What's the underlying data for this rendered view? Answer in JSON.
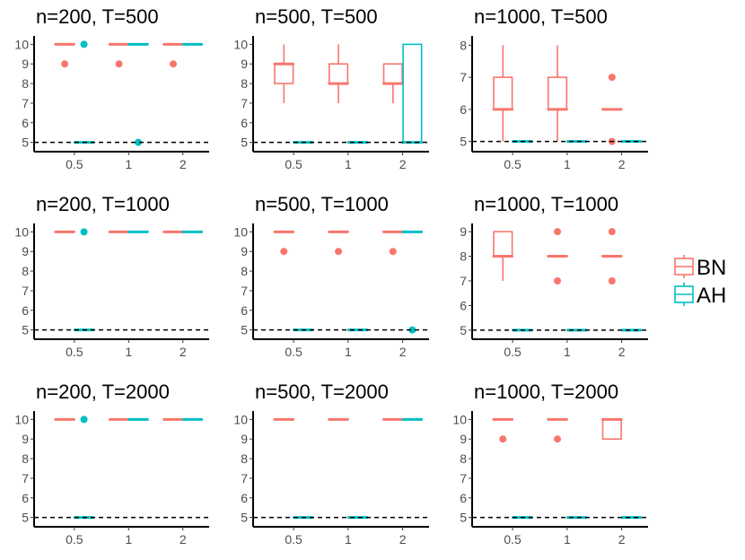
{
  "chart_data": {
    "type": "boxplot-grid",
    "colors": {
      "BN": "#F8766D",
      "AH": "#00BFC4"
    },
    "legend": {
      "position": "right",
      "entries": [
        "BN",
        "AH"
      ]
    },
    "reference_line": {
      "y": 5,
      "style": "dashed"
    },
    "x_categories": [
      "0.5",
      "1",
      "2"
    ],
    "panels": [
      {
        "title": "n=200, T=500",
        "ylim": [
          4.8,
          10.2
        ],
        "yticks": [
          5,
          6,
          7,
          8,
          9,
          10
        ],
        "groups": [
          {
            "x": "0.5",
            "series": "BN",
            "q1": 10,
            "median": 10,
            "q3": 10,
            "whisker_low": 10,
            "whisker_high": 10,
            "outliers": [
              9
            ]
          },
          {
            "x": "0.5",
            "series": "AH",
            "q1": 5,
            "median": 5,
            "q3": 5,
            "whisker_low": 5,
            "whisker_high": 5,
            "outliers": [
              10
            ]
          },
          {
            "x": "1",
            "series": "BN",
            "q1": 10,
            "median": 10,
            "q3": 10,
            "whisker_low": 10,
            "whisker_high": 10,
            "outliers": [
              9
            ]
          },
          {
            "x": "1",
            "series": "AH",
            "q1": 10,
            "median": 10,
            "q3": 10,
            "whisker_low": 10,
            "whisker_high": 10,
            "outliers": [
              5
            ]
          },
          {
            "x": "2",
            "series": "BN",
            "q1": 10,
            "median": 10,
            "q3": 10,
            "whisker_low": 10,
            "whisker_high": 10,
            "outliers": [
              9
            ]
          },
          {
            "x": "2",
            "series": "AH",
            "q1": 10,
            "median": 10,
            "q3": 10,
            "whisker_low": 10,
            "whisker_high": 10,
            "outliers": []
          }
        ]
      },
      {
        "title": "n=500, T=500",
        "ylim": [
          4.8,
          10.2
        ],
        "yticks": [
          5,
          6,
          7,
          8,
          9,
          10
        ],
        "groups": [
          {
            "x": "0.5",
            "series": "BN",
            "q1": 8,
            "median": 9,
            "q3": 9,
            "whisker_low": 7,
            "whisker_high": 10,
            "outliers": []
          },
          {
            "x": "0.5",
            "series": "AH",
            "q1": 5,
            "median": 5,
            "q3": 5,
            "whisker_low": 5,
            "whisker_high": 5,
            "outliers": []
          },
          {
            "x": "1",
            "series": "BN",
            "q1": 8,
            "median": 8,
            "q3": 9,
            "whisker_low": 7,
            "whisker_high": 10,
            "outliers": []
          },
          {
            "x": "1",
            "series": "AH",
            "q1": 5,
            "median": 5,
            "q3": 5,
            "whisker_low": 5,
            "whisker_high": 5,
            "outliers": []
          },
          {
            "x": "2",
            "series": "BN",
            "q1": 8,
            "median": 8,
            "q3": 9,
            "whisker_low": 7,
            "whisker_high": 9,
            "outliers": []
          },
          {
            "x": "2",
            "series": "AH",
            "q1": 5,
            "median": 5,
            "q3": 10,
            "whisker_low": 5,
            "whisker_high": 10,
            "outliers": []
          }
        ]
      },
      {
        "title": "n=1000, T=500",
        "ylim": [
          4.85,
          8.15
        ],
        "yticks": [
          5,
          6,
          7,
          8
        ],
        "groups": [
          {
            "x": "0.5",
            "series": "BN",
            "q1": 6,
            "median": 6,
            "q3": 7,
            "whisker_low": 5,
            "whisker_high": 8,
            "outliers": []
          },
          {
            "x": "0.5",
            "series": "AH",
            "q1": 5,
            "median": 5,
            "q3": 5,
            "whisker_low": 5,
            "whisker_high": 5,
            "outliers": []
          },
          {
            "x": "1",
            "series": "BN",
            "q1": 6,
            "median": 6,
            "q3": 7,
            "whisker_low": 5,
            "whisker_high": 8,
            "outliers": []
          },
          {
            "x": "1",
            "series": "AH",
            "q1": 5,
            "median": 5,
            "q3": 5,
            "whisker_low": 5,
            "whisker_high": 5,
            "outliers": []
          },
          {
            "x": "2",
            "series": "BN",
            "q1": 6,
            "median": 6,
            "q3": 6,
            "whisker_low": 6,
            "whisker_high": 6,
            "outliers": [
              7,
              5
            ]
          },
          {
            "x": "2",
            "series": "AH",
            "q1": 5,
            "median": 5,
            "q3": 5,
            "whisker_low": 5,
            "whisker_high": 5,
            "outliers": []
          }
        ]
      },
      {
        "title": "n=200, T=1000",
        "ylim": [
          4.8,
          10.2
        ],
        "yticks": [
          5,
          6,
          7,
          8,
          9,
          10
        ],
        "groups": [
          {
            "x": "0.5",
            "series": "BN",
            "q1": 10,
            "median": 10,
            "q3": 10,
            "whisker_low": 10,
            "whisker_high": 10,
            "outliers": []
          },
          {
            "x": "0.5",
            "series": "AH",
            "q1": 5,
            "median": 5,
            "q3": 5,
            "whisker_low": 5,
            "whisker_high": 5,
            "outliers": [
              10
            ]
          },
          {
            "x": "1",
            "series": "BN",
            "q1": 10,
            "median": 10,
            "q3": 10,
            "whisker_low": 10,
            "whisker_high": 10,
            "outliers": []
          },
          {
            "x": "1",
            "series": "AH",
            "q1": 10,
            "median": 10,
            "q3": 10,
            "whisker_low": 10,
            "whisker_high": 10,
            "outliers": []
          },
          {
            "x": "2",
            "series": "BN",
            "q1": 10,
            "median": 10,
            "q3": 10,
            "whisker_low": 10,
            "whisker_high": 10,
            "outliers": []
          },
          {
            "x": "2",
            "series": "AH",
            "q1": 10,
            "median": 10,
            "q3": 10,
            "whisker_low": 10,
            "whisker_high": 10,
            "outliers": []
          }
        ]
      },
      {
        "title": "n=500, T=1000",
        "ylim": [
          4.8,
          10.2
        ],
        "yticks": [
          5,
          6,
          7,
          8,
          9,
          10
        ],
        "groups": [
          {
            "x": "0.5",
            "series": "BN",
            "q1": 10,
            "median": 10,
            "q3": 10,
            "whisker_low": 10,
            "whisker_high": 10,
            "outliers": [
              9
            ]
          },
          {
            "x": "0.5",
            "series": "AH",
            "q1": 5,
            "median": 5,
            "q3": 5,
            "whisker_low": 5,
            "whisker_high": 5,
            "outliers": []
          },
          {
            "x": "1",
            "series": "BN",
            "q1": 10,
            "median": 10,
            "q3": 10,
            "whisker_low": 10,
            "whisker_high": 10,
            "outliers": [
              9
            ]
          },
          {
            "x": "1",
            "series": "AH",
            "q1": 5,
            "median": 5,
            "q3": 5,
            "whisker_low": 5,
            "whisker_high": 5,
            "outliers": []
          },
          {
            "x": "2",
            "series": "BN",
            "q1": 10,
            "median": 10,
            "q3": 10,
            "whisker_low": 10,
            "whisker_high": 10,
            "outliers": [
              9
            ]
          },
          {
            "x": "2",
            "series": "AH",
            "q1": 10,
            "median": 10,
            "q3": 10,
            "whisker_low": 10,
            "whisker_high": 10,
            "outliers": [
              5
            ]
          }
        ]
      },
      {
        "title": "n=1000, T=1000",
        "ylim": [
          4.85,
          9.15
        ],
        "yticks": [
          5,
          6,
          7,
          8,
          9
        ],
        "groups": [
          {
            "x": "0.5",
            "series": "BN",
            "q1": 8,
            "median": 8,
            "q3": 9,
            "whisker_low": 7,
            "whisker_high": 9,
            "outliers": []
          },
          {
            "x": "0.5",
            "series": "AH",
            "q1": 5,
            "median": 5,
            "q3": 5,
            "whisker_low": 5,
            "whisker_high": 5,
            "outliers": []
          },
          {
            "x": "1",
            "series": "BN",
            "q1": 8,
            "median": 8,
            "q3": 8,
            "whisker_low": 8,
            "whisker_high": 8,
            "outliers": [
              9,
              7
            ]
          },
          {
            "x": "1",
            "series": "AH",
            "q1": 5,
            "median": 5,
            "q3": 5,
            "whisker_low": 5,
            "whisker_high": 5,
            "outliers": []
          },
          {
            "x": "2",
            "series": "BN",
            "q1": 8,
            "median": 8,
            "q3": 8,
            "whisker_low": 8,
            "whisker_high": 8,
            "outliers": [
              9,
              7
            ]
          },
          {
            "x": "2",
            "series": "AH",
            "q1": 5,
            "median": 5,
            "q3": 5,
            "whisker_low": 5,
            "whisker_high": 5,
            "outliers": []
          }
        ]
      },
      {
        "title": "n=200, T=2000",
        "ylim": [
          4.8,
          10.2
        ],
        "yticks": [
          5,
          6,
          7,
          8,
          9,
          10
        ],
        "groups": [
          {
            "x": "0.5",
            "series": "BN",
            "q1": 10,
            "median": 10,
            "q3": 10,
            "whisker_low": 10,
            "whisker_high": 10,
            "outliers": []
          },
          {
            "x": "0.5",
            "series": "AH",
            "q1": 5,
            "median": 5,
            "q3": 5,
            "whisker_low": 5,
            "whisker_high": 5,
            "outliers": [
              10
            ]
          },
          {
            "x": "1",
            "series": "BN",
            "q1": 10,
            "median": 10,
            "q3": 10,
            "whisker_low": 10,
            "whisker_high": 10,
            "outliers": []
          },
          {
            "x": "1",
            "series": "AH",
            "q1": 10,
            "median": 10,
            "q3": 10,
            "whisker_low": 10,
            "whisker_high": 10,
            "outliers": []
          },
          {
            "x": "2",
            "series": "BN",
            "q1": 10,
            "median": 10,
            "q3": 10,
            "whisker_low": 10,
            "whisker_high": 10,
            "outliers": []
          },
          {
            "x": "2",
            "series": "AH",
            "q1": 10,
            "median": 10,
            "q3": 10,
            "whisker_low": 10,
            "whisker_high": 10,
            "outliers": []
          }
        ]
      },
      {
        "title": "n=500, T=2000",
        "ylim": [
          4.8,
          10.2
        ],
        "yticks": [
          5,
          6,
          7,
          8,
          9,
          10
        ],
        "groups": [
          {
            "x": "0.5",
            "series": "BN",
            "q1": 10,
            "median": 10,
            "q3": 10,
            "whisker_low": 10,
            "whisker_high": 10,
            "outliers": []
          },
          {
            "x": "0.5",
            "series": "AH",
            "q1": 5,
            "median": 5,
            "q3": 5,
            "whisker_low": 5,
            "whisker_high": 5,
            "outliers": []
          },
          {
            "x": "1",
            "series": "BN",
            "q1": 10,
            "median": 10,
            "q3": 10,
            "whisker_low": 10,
            "whisker_high": 10,
            "outliers": []
          },
          {
            "x": "1",
            "series": "AH",
            "q1": 5,
            "median": 5,
            "q3": 5,
            "whisker_low": 5,
            "whisker_high": 5,
            "outliers": []
          },
          {
            "x": "2",
            "series": "BN",
            "q1": 10,
            "median": 10,
            "q3": 10,
            "whisker_low": 10,
            "whisker_high": 10,
            "outliers": []
          },
          {
            "x": "2",
            "series": "AH",
            "q1": 10,
            "median": 10,
            "q3": 10,
            "whisker_low": 10,
            "whisker_high": 10,
            "outliers": []
          }
        ]
      },
      {
        "title": "n=1000, T=2000",
        "ylim": [
          4.8,
          10.2
        ],
        "yticks": [
          5,
          6,
          7,
          8,
          9,
          10
        ],
        "groups": [
          {
            "x": "0.5",
            "series": "BN",
            "q1": 10,
            "median": 10,
            "q3": 10,
            "whisker_low": 10,
            "whisker_high": 10,
            "outliers": [
              9
            ]
          },
          {
            "x": "0.5",
            "series": "AH",
            "q1": 5,
            "median": 5,
            "q3": 5,
            "whisker_low": 5,
            "whisker_high": 5,
            "outliers": []
          },
          {
            "x": "1",
            "series": "BN",
            "q1": 10,
            "median": 10,
            "q3": 10,
            "whisker_low": 10,
            "whisker_high": 10,
            "outliers": [
              9
            ]
          },
          {
            "x": "1",
            "series": "AH",
            "q1": 5,
            "median": 5,
            "q3": 5,
            "whisker_low": 5,
            "whisker_high": 5,
            "outliers": []
          },
          {
            "x": "2",
            "series": "BN",
            "q1": 9,
            "median": 10,
            "q3": 10,
            "whisker_low": 9,
            "whisker_high": 10,
            "outliers": []
          },
          {
            "x": "2",
            "series": "AH",
            "q1": 5,
            "median": 5,
            "q3": 5,
            "whisker_low": 5,
            "whisker_high": 5,
            "outliers": []
          }
        ]
      }
    ]
  }
}
